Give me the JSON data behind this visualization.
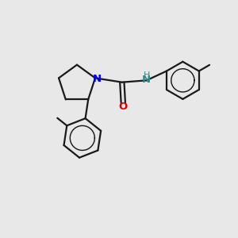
{
  "background_color": "#e8e8e8",
  "bond_color": "#1a1a1a",
  "nitrogen_color": "#0000ee",
  "oxygen_color": "#dd0000",
  "nh_color": "#2e8b8b",
  "figsize": [
    3.0,
    3.0
  ],
  "dpi": 100,
  "xlim": [
    0,
    10
  ],
  "ylim": [
    0,
    10
  ]
}
